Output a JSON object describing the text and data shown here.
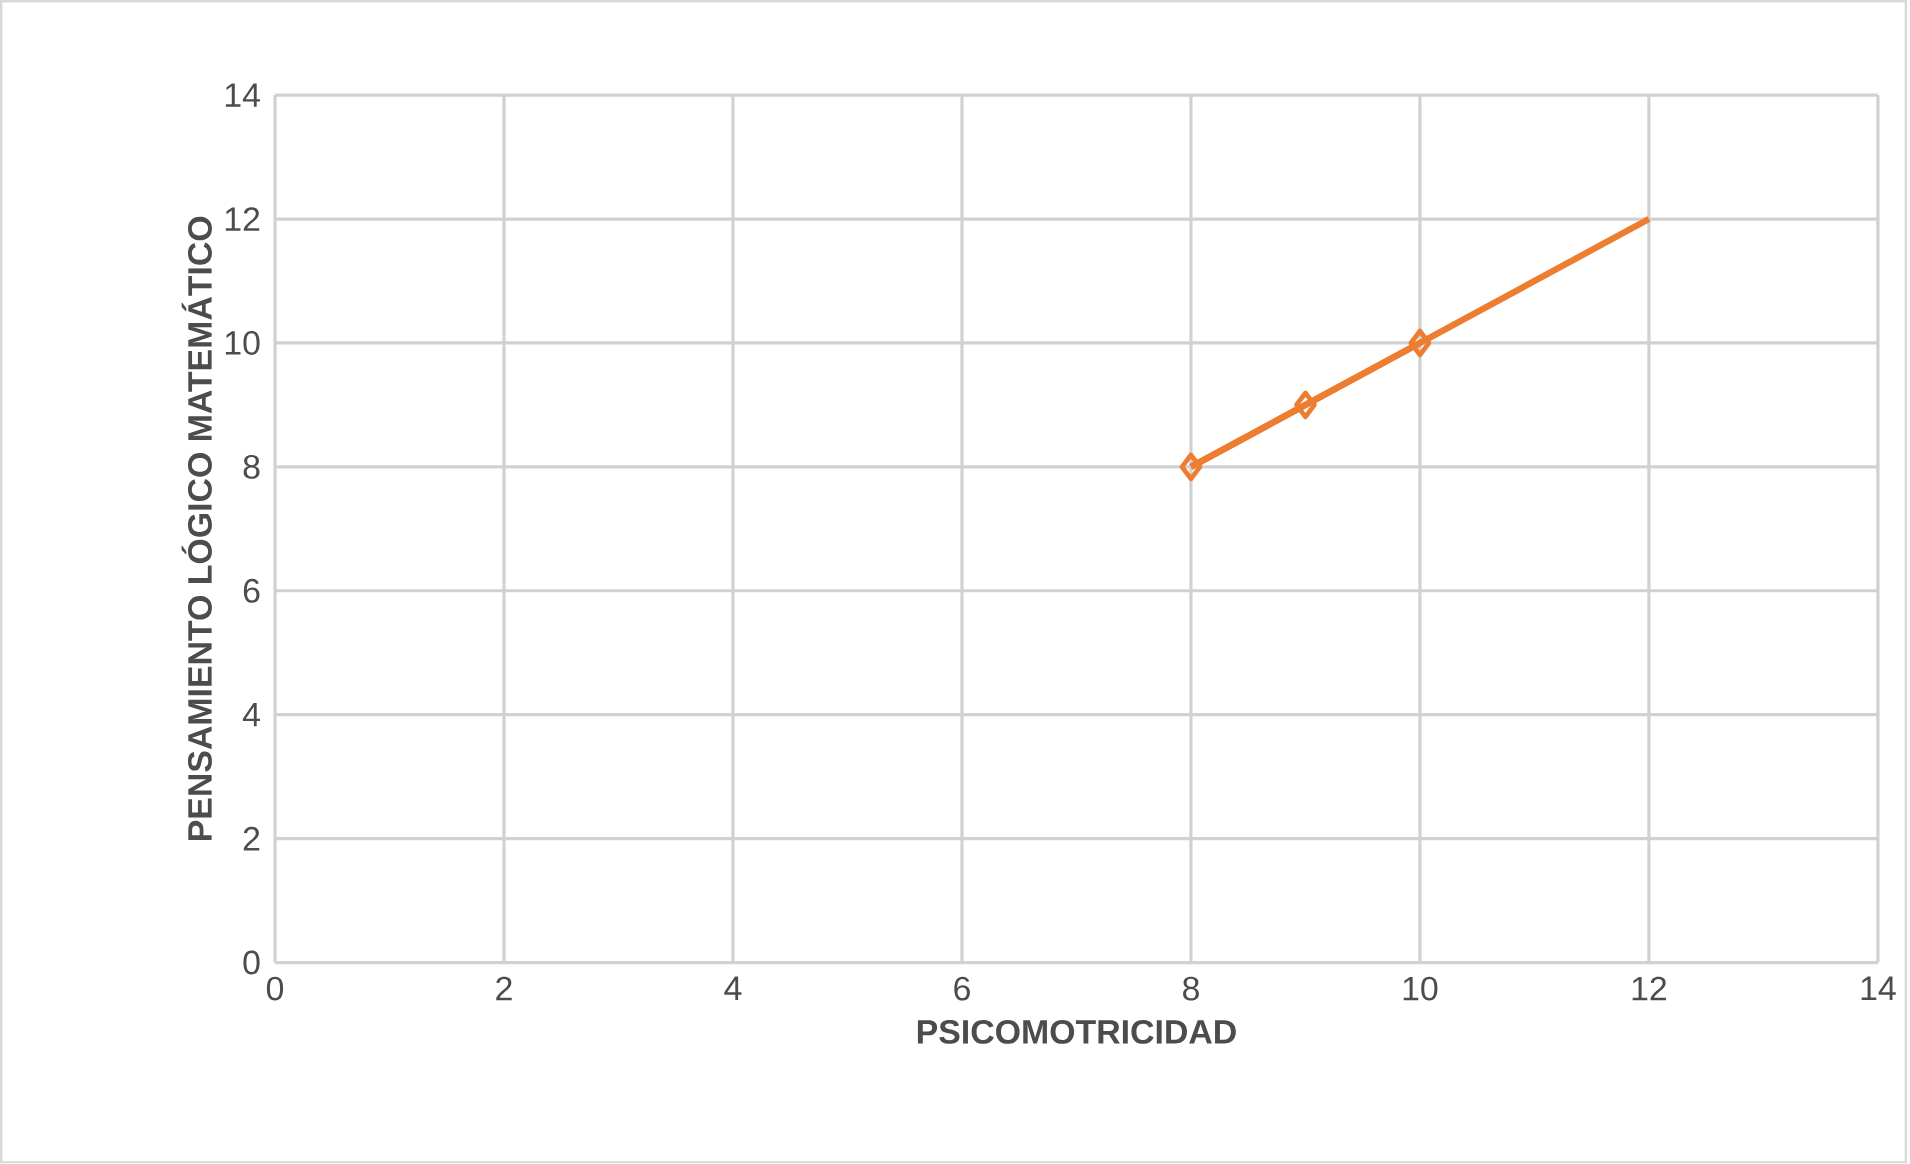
{
  "chart_data": {
    "type": "line",
    "xlabel": "PSICOMOTRICIDAD",
    "ylabel": "PENSAMIENTO LÓGICO MATEMÁTICO",
    "xlim": [
      0,
      14
    ],
    "ylim": [
      0,
      14
    ],
    "xticks": [
      0,
      2,
      4,
      6,
      8,
      10,
      12,
      14
    ],
    "yticks": [
      0,
      2,
      4,
      6,
      8,
      10,
      12,
      14
    ],
    "grid": true,
    "series": [
      {
        "color": "#ed7d31",
        "marker": "diamond",
        "x": [
          8,
          9,
          10
        ],
        "values": [
          8,
          9,
          10
        ]
      },
      {
        "color": "#ed7d31",
        "marker": "none",
        "x": [
          8,
          12
        ],
        "values": [
          8,
          12
        ]
      }
    ]
  }
}
